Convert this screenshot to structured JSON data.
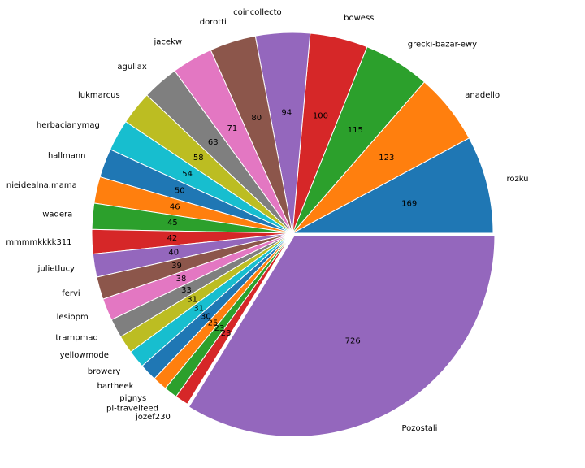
{
  "chart_data": {
    "type": "pie",
    "title": "",
    "start_angle_deg": 0,
    "direction": "counterclockwise",
    "explode_last": true,
    "slices": [
      {
        "label": "rozku",
        "value": 169,
        "color": "#1f77b4"
      },
      {
        "label": "anadello",
        "value": 123,
        "color": "#ff7f0e"
      },
      {
        "label": "grecki-bazar-ewy",
        "value": 115,
        "color": "#2ca02c"
      },
      {
        "label": "bowess",
        "value": 100,
        "color": "#d62728"
      },
      {
        "label": "coincollecto",
        "value": 94,
        "color": "#9467bd"
      },
      {
        "label": "dorotti",
        "value": 80,
        "color": "#8c564b"
      },
      {
        "label": "jacekw",
        "value": 71,
        "color": "#e377c2"
      },
      {
        "label": "agullax",
        "value": 63,
        "color": "#7f7f7f"
      },
      {
        "label": "lukmarcus",
        "value": 58,
        "color": "#bcbd22"
      },
      {
        "label": "herbacianymag",
        "value": 54,
        "color": "#17becf"
      },
      {
        "label": "hallmann",
        "value": 50,
        "color": "#1f77b4"
      },
      {
        "label": "nieidealna.mama",
        "value": 46,
        "color": "#ff7f0e"
      },
      {
        "label": "wadera",
        "value": 45,
        "color": "#2ca02c"
      },
      {
        "label": "mmmmkkkk311",
        "value": 42,
        "color": "#d62728"
      },
      {
        "label": "julietlucy",
        "value": 40,
        "color": "#9467bd"
      },
      {
        "label": "fervi",
        "value": 39,
        "color": "#8c564b"
      },
      {
        "label": "lesiopm",
        "value": 38,
        "color": "#e377c2"
      },
      {
        "label": "trampmad",
        "value": 33,
        "color": "#7f7f7f"
      },
      {
        "label": "yellowmode",
        "value": 31,
        "color": "#bcbd22"
      },
      {
        "label": "browery",
        "value": 31,
        "color": "#17becf"
      },
      {
        "label": "bartheek",
        "value": 30,
        "color": "#1f77b4"
      },
      {
        "label": "pignys",
        "value": 25,
        "color": "#ff7f0e"
      },
      {
        "label": "pl-travelfeed",
        "value": 23,
        "color": "#2ca02c"
      },
      {
        "label": "jozef230",
        "value": 23,
        "color": "#d62728"
      },
      {
        "label": "Pozostali",
        "value": 726,
        "color": "#9467bd"
      }
    ]
  }
}
